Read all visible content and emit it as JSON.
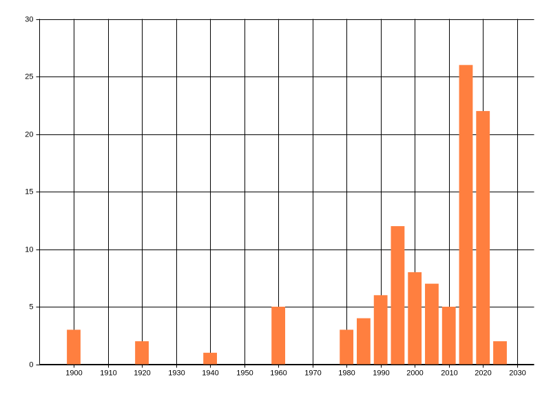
{
  "chart_data": {
    "type": "bar",
    "x": [
      1900,
      1920,
      1940,
      1960,
      1980,
      1985,
      1990,
      1995,
      2000,
      2005,
      2010,
      2015,
      2020,
      2025
    ],
    "values": [
      3,
      2,
      1,
      5,
      3,
      4,
      6,
      12,
      8,
      7,
      5,
      26,
      22,
      2
    ],
    "color": "#ff7f3f",
    "xlim": [
      1890,
      2035
    ],
    "xticks": [
      1900,
      1910,
      1920,
      1930,
      1940,
      1950,
      1960,
      1970,
      1980,
      1990,
      2000,
      2010,
      2020,
      2030
    ],
    "ylim": [
      0,
      30
    ],
    "yticks": [
      0,
      5,
      10,
      15,
      20,
      25,
      30
    ],
    "grid": true
  }
}
